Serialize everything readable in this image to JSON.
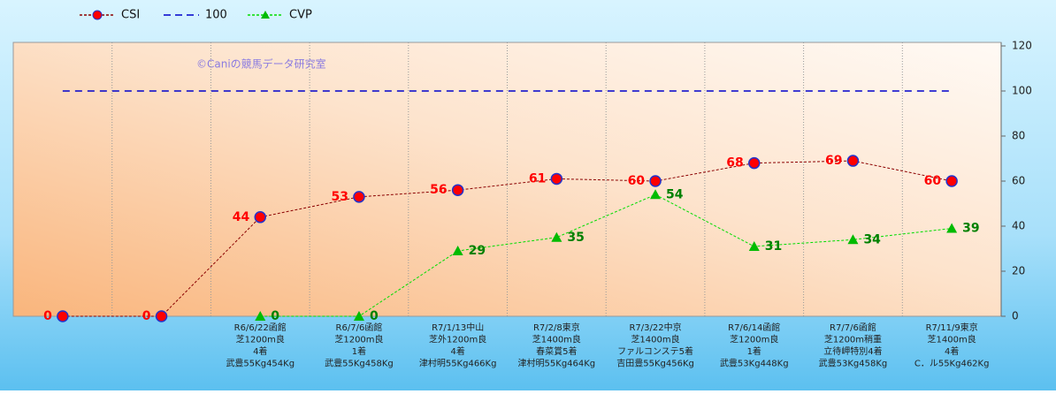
{
  "chart_data": {
    "type": "line",
    "watermark": "©Caniの競馬データ研究室",
    "categories": [
      null,
      null,
      [
        "R6/6/22函館",
        "芝1200m良",
        "4着",
        "武豊55Kg454Kg"
      ],
      [
        "R6/7/6函館",
        "芝1200m良",
        "1着",
        "武豊55Kg458Kg"
      ],
      [
        "R7/1/13中山",
        "芝外1200m良",
        "4着",
        "津村明55Kg466Kg"
      ],
      [
        "R7/2/8東京",
        "芝1400m良",
        "春菜賞5着",
        "津村明55Kg464Kg"
      ],
      [
        "R7/3/22中京",
        "芝1400m良",
        "ファルコンステ5着",
        "吉田豊55Kg456Kg"
      ],
      [
        "R7/6/14函館",
        "芝1200m良",
        "1着",
        "武豊53Kg448Kg"
      ],
      [
        "R7/7/6函館",
        "芝1200m稍重",
        "立待岬特別4着",
        "武豊53Kg458Kg"
      ],
      [
        "R7/11/9東京",
        "芝1400m良",
        "4着",
        "C．ル55Kg462Kg"
      ]
    ],
    "series": [
      {
        "name": "CSI",
        "color": "#8b0000",
        "marker": "circle",
        "marker_color": "#ff0000",
        "label_color": "#ff0000",
        "values": [
          0,
          0,
          44,
          53,
          56,
          61,
          60,
          68,
          69,
          60
        ]
      },
      {
        "name": "100",
        "color": "#0000cc",
        "marker": "none",
        "values": [
          100,
          100,
          100,
          100,
          100,
          100,
          100,
          100,
          100,
          100
        ]
      },
      {
        "name": "CVP",
        "color": "#00dd00",
        "marker": "triangle",
        "marker_color": "#00bb00",
        "label_color": "#008000",
        "values": [
          null,
          null,
          0,
          0,
          29,
          35,
          54,
          31,
          34,
          39
        ]
      }
    ],
    "ylim": [
      0,
      120
    ],
    "yticks": [
      0,
      20,
      40,
      60,
      80,
      100,
      120
    ],
    "y_axis_side": "right",
    "grid": "vertical"
  }
}
